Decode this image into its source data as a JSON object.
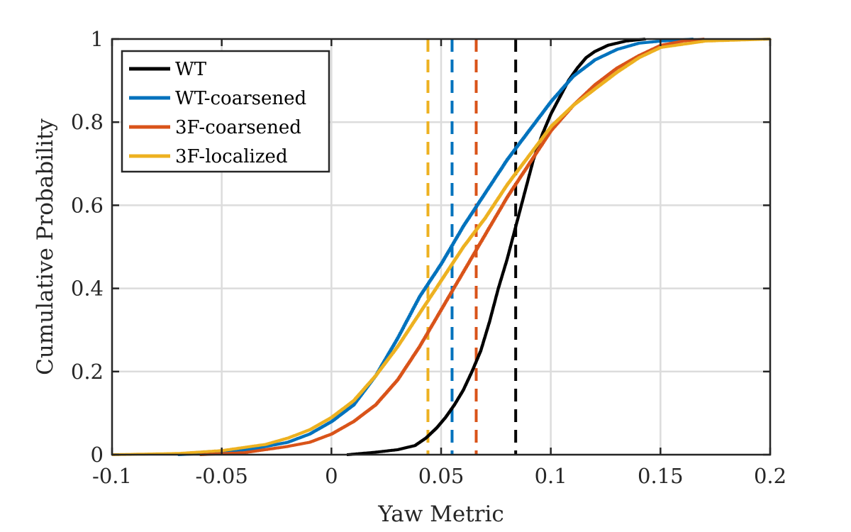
{
  "chart_data": {
    "type": "line",
    "title": "",
    "xlabel": "Yaw Metric",
    "ylabel": "Cumulative Probability",
    "xlim": [
      -0.1,
      0.2
    ],
    "ylim": [
      0,
      1
    ],
    "xticks": [
      -0.1,
      -0.05,
      0,
      0.05,
      0.1,
      0.15,
      0.2
    ],
    "xtick_labels": [
      "-0.1",
      "-0.05",
      "0",
      "0.05",
      "0.1",
      "0.15",
      "0.2"
    ],
    "yticks": [
      0,
      0.2,
      0.4,
      0.6,
      0.8,
      1
    ],
    "ytick_labels": [
      "0",
      "0.2",
      "0.4",
      "0.6",
      "0.8",
      "1"
    ],
    "grid": true,
    "legend_position": "top-left",
    "series": [
      {
        "name": "WT",
        "color": "#000000",
        "mean_line_x": 0.084,
        "x": [
          0.007,
          0.02,
          0.03,
          0.038,
          0.043,
          0.048,
          0.052,
          0.056,
          0.06,
          0.064,
          0.068,
          0.072,
          0.076,
          0.08,
          0.084,
          0.088,
          0.092,
          0.096,
          0.1,
          0.104,
          0.108,
          0.112,
          0.116,
          0.12,
          0.126,
          0.134,
          0.143
        ],
        "y": [
          0.0,
          0.006,
          0.012,
          0.022,
          0.04,
          0.065,
          0.09,
          0.12,
          0.155,
          0.2,
          0.25,
          0.32,
          0.4,
          0.47,
          0.55,
          0.63,
          0.71,
          0.77,
          0.82,
          0.86,
          0.9,
          0.93,
          0.955,
          0.97,
          0.985,
          0.995,
          1.0
        ]
      },
      {
        "name": "WT-coarsened",
        "color": "#0072BD",
        "mean_line_x": 0.055,
        "x": [
          -0.07,
          -0.05,
          -0.035,
          -0.02,
          -0.01,
          0.0,
          0.01,
          0.02,
          0.03,
          0.04,
          0.05,
          0.06,
          0.07,
          0.08,
          0.09,
          0.1,
          0.11,
          0.12,
          0.13,
          0.14,
          0.15,
          0.165
        ],
        "y": [
          0.0,
          0.005,
          0.015,
          0.03,
          0.05,
          0.08,
          0.12,
          0.19,
          0.28,
          0.38,
          0.46,
          0.55,
          0.63,
          0.71,
          0.78,
          0.85,
          0.91,
          0.95,
          0.975,
          0.99,
          0.995,
          1.0
        ]
      },
      {
        "name": "3F-coarsened",
        "color": "#D95319",
        "mean_line_x": 0.066,
        "x": [
          -0.06,
          -0.04,
          -0.02,
          -0.01,
          0.0,
          0.01,
          0.02,
          0.03,
          0.04,
          0.05,
          0.06,
          0.07,
          0.08,
          0.09,
          0.1,
          0.11,
          0.12,
          0.13,
          0.14,
          0.15,
          0.16,
          0.17
        ],
        "y": [
          0.0,
          0.005,
          0.02,
          0.03,
          0.05,
          0.08,
          0.12,
          0.18,
          0.26,
          0.35,
          0.44,
          0.53,
          0.62,
          0.7,
          0.78,
          0.84,
          0.89,
          0.93,
          0.96,
          0.985,
          0.995,
          1.0
        ]
      },
      {
        "name": "3F-localized",
        "color": "#EDB120",
        "mean_line_x": 0.044,
        "x": [
          -0.1,
          -0.07,
          -0.05,
          -0.03,
          -0.02,
          -0.01,
          0.0,
          0.01,
          0.02,
          0.03,
          0.04,
          0.05,
          0.06,
          0.07,
          0.08,
          0.09,
          0.1,
          0.11,
          0.12,
          0.13,
          0.14,
          0.15,
          0.17,
          0.2
        ],
        "y": [
          0.0,
          0.003,
          0.01,
          0.025,
          0.04,
          0.06,
          0.09,
          0.13,
          0.19,
          0.26,
          0.34,
          0.42,
          0.5,
          0.57,
          0.65,
          0.72,
          0.79,
          0.84,
          0.88,
          0.92,
          0.955,
          0.98,
          0.995,
          1.0
        ]
      }
    ]
  }
}
